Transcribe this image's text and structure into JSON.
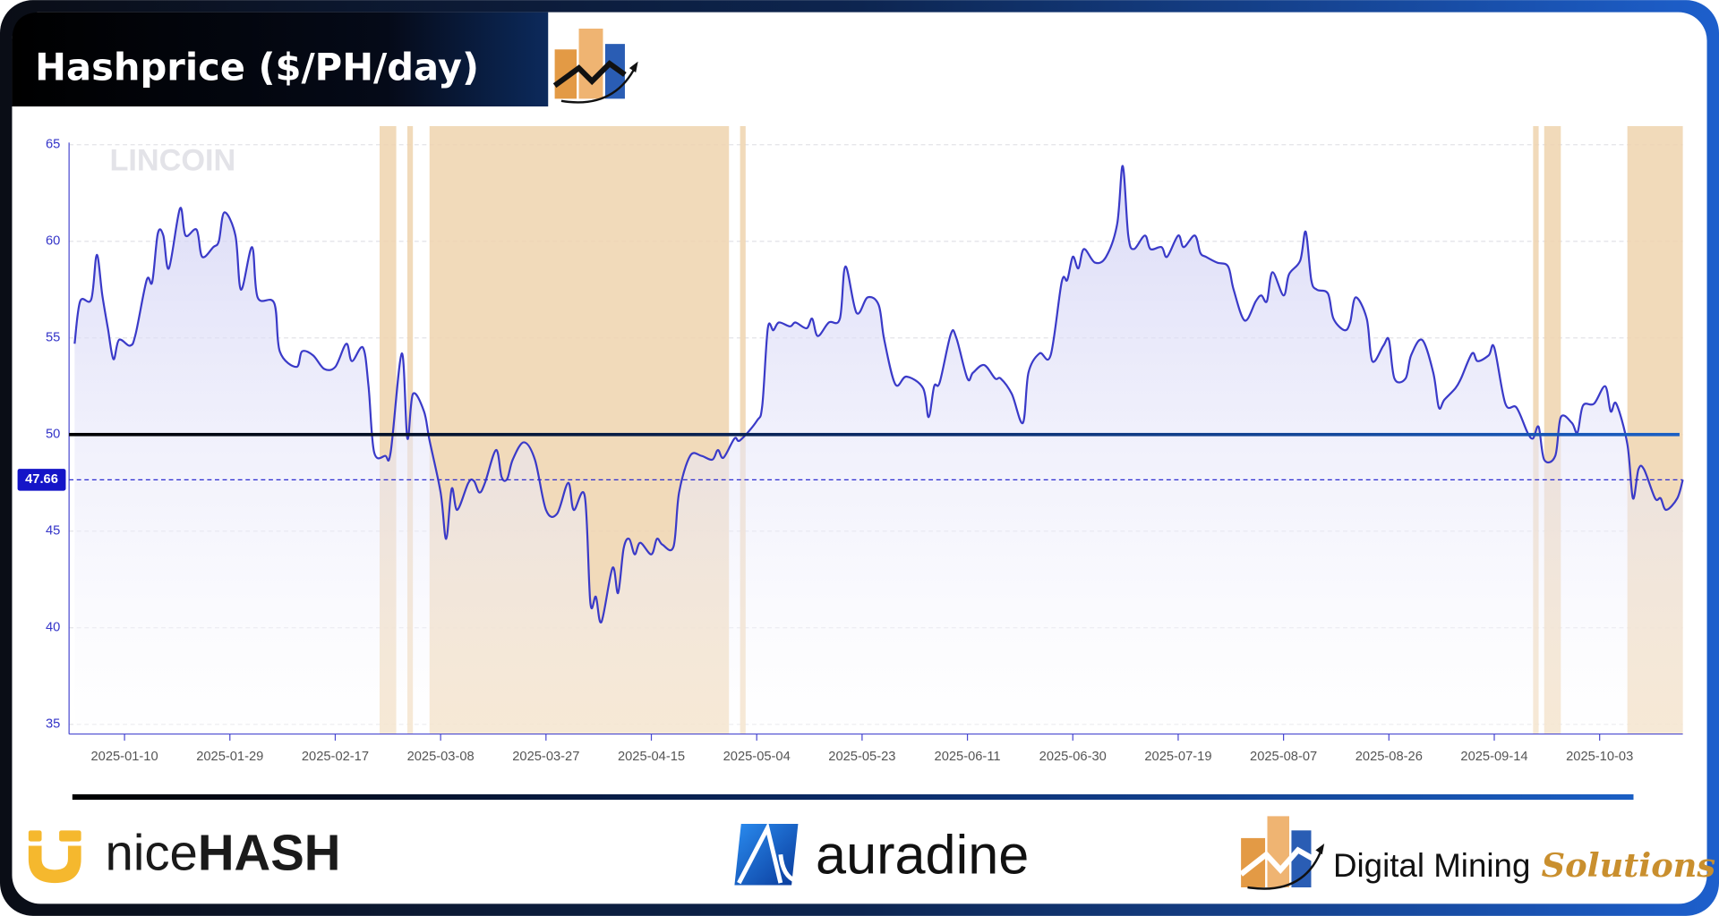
{
  "chart_data": {
    "type": "line",
    "title": "Hashprice ($/PH/day)",
    "watermark": "LINCOIN",
    "color": "#3a3ac8",
    "area": true,
    "grid": true,
    "xlim": [
      "2024-12-31",
      "2025-10-18"
    ],
    "ylim": [
      34.5,
      65
    ],
    "yticks": [
      35,
      40,
      45,
      50,
      55,
      60,
      65
    ],
    "xticks": [
      "2025-01-10",
      "2025-01-29",
      "2025-02-17",
      "2025-03-08",
      "2025-03-27",
      "2025-04-15",
      "2025-05-04",
      "2025-05-23",
      "2025-06-11",
      "2025-06-30",
      "2025-07-19",
      "2025-08-07",
      "2025-08-26",
      "2025-09-14",
      "2025-10-03"
    ],
    "reference_line": 50,
    "current_value": 47.66,
    "shade_color": "#efd3ae",
    "shaded_ranges": [
      [
        "2025-02-25",
        "2025-02-28"
      ],
      [
        "2025-03-02",
        "2025-03-03"
      ],
      [
        "2025-03-06",
        "2025-04-29"
      ],
      [
        "2025-05-01",
        "2025-05-02"
      ],
      [
        "2025-09-21",
        "2025-09-22"
      ],
      [
        "2025-09-23",
        "2025-09-26"
      ],
      [
        "2025-10-08",
        "2025-10-18"
      ]
    ],
    "x": [
      "2025-01-01",
      "2025-01-02",
      "2025-01-04",
      "2025-01-05",
      "2025-01-06",
      "2025-01-07",
      "2025-01-08",
      "2025-01-09",
      "2025-01-11",
      "2025-01-12",
      "2025-01-14",
      "2025-01-15",
      "2025-01-16",
      "2025-01-17",
      "2025-01-18",
      "2025-01-20",
      "2025-01-21",
      "2025-01-23",
      "2025-01-24",
      "2025-01-26",
      "2025-01-27",
      "2025-01-28",
      "2025-01-30",
      "2025-01-31",
      "2025-02-02",
      "2025-02-03",
      "2025-02-06",
      "2025-02-07",
      "2025-02-10",
      "2025-02-11",
      "2025-02-13",
      "2025-02-15",
      "2025-02-17",
      "2025-02-19",
      "2025-02-20",
      "2025-02-22",
      "2025-02-23",
      "2025-02-24",
      "2025-02-26",
      "2025-02-27",
      "2025-03-01",
      "2025-03-02",
      "2025-03-03",
      "2025-03-05",
      "2025-03-06",
      "2025-03-08",
      "2025-03-09",
      "2025-03-10",
      "2025-03-11",
      "2025-03-13",
      "2025-03-14",
      "2025-03-15",
      "2025-03-16",
      "2025-03-18",
      "2025-03-19",
      "2025-03-20",
      "2025-03-21",
      "2025-03-23",
      "2025-03-25",
      "2025-03-27",
      "2025-03-29",
      "2025-03-31",
      "2025-04-01",
      "2025-04-03",
      "2025-04-04",
      "2025-04-05",
      "2025-04-06",
      "2025-04-08",
      "2025-04-09",
      "2025-04-10",
      "2025-04-11",
      "2025-04-12",
      "2025-04-13",
      "2025-04-15",
      "2025-04-16",
      "2025-04-17",
      "2025-04-19",
      "2025-04-20",
      "2025-04-22",
      "2025-04-24",
      "2025-04-26",
      "2025-04-27",
      "2025-04-28",
      "2025-04-30",
      "2025-05-01",
      "2025-05-04",
      "2025-05-05",
      "2025-05-06",
      "2025-05-07",
      "2025-05-08",
      "2025-05-10",
      "2025-05-11",
      "2025-05-13",
      "2025-05-14",
      "2025-05-15",
      "2025-05-17",
      "2025-05-19",
      "2025-05-20",
      "2025-05-22",
      "2025-05-24",
      "2025-05-26",
      "2025-05-27",
      "2025-05-29",
      "2025-05-31",
      "2025-06-03",
      "2025-06-04",
      "2025-06-05",
      "2025-06-06",
      "2025-06-08",
      "2025-06-09",
      "2025-06-11",
      "2025-06-12",
      "2025-06-14",
      "2025-06-16",
      "2025-06-17",
      "2025-06-19",
      "2025-06-21",
      "2025-06-22",
      "2025-06-24",
      "2025-06-26",
      "2025-06-28",
      "2025-06-29",
      "2025-06-30",
      "2025-07-01",
      "2025-07-02",
      "2025-07-04",
      "2025-07-06",
      "2025-07-08",
      "2025-07-09",
      "2025-07-10",
      "2025-07-11",
      "2025-07-13",
      "2025-07-14",
      "2025-07-16",
      "2025-07-17",
      "2025-07-19",
      "2025-07-20",
      "2025-07-22",
      "2025-07-23",
      "2025-07-24",
      "2025-07-26",
      "2025-07-28",
      "2025-07-29",
      "2025-07-31",
      "2025-08-02",
      "2025-08-03",
      "2025-08-04",
      "2025-08-05",
      "2025-08-07",
      "2025-08-08",
      "2025-08-10",
      "2025-08-11",
      "2025-08-12",
      "2025-08-13",
      "2025-08-15",
      "2025-08-16",
      "2025-08-18",
      "2025-08-19",
      "2025-08-20",
      "2025-08-22",
      "2025-08-23",
      "2025-08-25",
      "2025-08-26",
      "2025-08-27",
      "2025-08-29",
      "2025-08-30",
      "2025-09-01",
      "2025-09-03",
      "2025-09-04",
      "2025-09-05",
      "2025-09-07",
      "2025-09-08",
      "2025-09-10",
      "2025-09-11",
      "2025-09-13",
      "2025-09-14",
      "2025-09-16",
      "2025-09-18",
      "2025-09-20",
      "2025-09-21",
      "2025-09-22",
      "2025-09-23",
      "2025-09-25",
      "2025-09-26",
      "2025-09-28",
      "2025-09-29",
      "2025-09-30",
      "2025-10-02",
      "2025-10-04",
      "2025-10-05",
      "2025-10-06",
      "2025-10-08",
      "2025-10-09",
      "2025-10-10",
      "2025-10-11",
      "2025-10-13",
      "2025-10-14",
      "2025-10-15",
      "2025-10-17",
      "2025-10-18"
    ],
    "values": [
      54.7,
      56.9,
      57.0,
      59.3,
      57.2,
      55.5,
      53.9,
      54.9,
      54.6,
      55.2,
      58.0,
      57.9,
      60.4,
      60.3,
      58.6,
      61.7,
      60.3,
      60.6,
      59.2,
      59.7,
      60.0,
      61.5,
      60.3,
      57.5,
      59.7,
      57.1,
      56.8,
      54.3,
      53.5,
      54.3,
      54.1,
      53.4,
      53.5,
      54.7,
      53.8,
      54.5,
      52.5,
      49.1,
      48.9,
      49.1,
      54.2,
      49.8,
      52.1,
      51.2,
      49.7,
      47.0,
      44.6,
      47.2,
      46.1,
      47.5,
      47.6,
      47.0,
      47.5,
      49.2,
      47.8,
      47.7,
      48.7,
      49.6,
      48.7,
      46.1,
      45.9,
      47.5,
      46.1,
      46.8,
      41.3,
      41.6,
      40.3,
      43.1,
      41.8,
      44.1,
      44.6,
      43.8,
      44.4,
      43.8,
      44.6,
      44.3,
      44.2,
      47.0,
      48.9,
      48.9,
      48.7,
      49.2,
      48.8,
      49.8,
      49.7,
      50.7,
      51.5,
      55.5,
      55.4,
      55.8,
      55.6,
      55.8,
      55.5,
      56.0,
      55.1,
      55.8,
      56.0,
      58.7,
      56.3,
      57.1,
      56.7,
      54.9,
      52.6,
      53.0,
      52.4,
      50.9,
      52.5,
      52.7,
      55.2,
      55.0,
      52.9,
      53.2,
      53.6,
      52.9,
      52.9,
      52.1,
      50.6,
      53.2,
      54.2,
      54.1,
      57.9,
      58.0,
      59.2,
      58.6,
      59.6,
      58.9,
      59.2,
      60.9,
      63.9,
      60.3,
      59.6,
      60.3,
      59.6,
      59.7,
      59.2,
      60.3,
      59.7,
      60.3,
      59.4,
      59.2,
      58.9,
      58.7,
      57.5,
      55.9,
      56.9,
      57.2,
      56.9,
      58.4,
      57.2,
      58.3,
      59.0,
      60.5,
      58.0,
      57.5,
      57.3,
      56.0,
      55.4,
      55.8,
      57.1,
      56.0,
      53.8,
      54.6,
      54.9,
      52.9,
      52.9,
      54.1,
      54.9,
      53.2,
      51.4,
      51.8,
      52.4,
      52.9,
      54.2,
      53.8,
      54.1,
      54.5,
      51.6,
      51.4,
      50.1,
      49.8,
      50.4,
      48.7,
      48.9,
      50.9,
      50.6,
      50.1,
      51.5,
      51.6,
      52.5,
      51.2,
      51.6,
      49.5,
      46.7,
      48.2,
      48.2,
      46.7,
      46.7,
      46.1,
      46.7,
      47.66
    ]
  },
  "footer": {
    "nicehash": {
      "light": "nice",
      "bold": "HASH"
    },
    "auradine": "auradine",
    "dms": {
      "main": "Digital Mining",
      "accent": "Solutions"
    }
  }
}
